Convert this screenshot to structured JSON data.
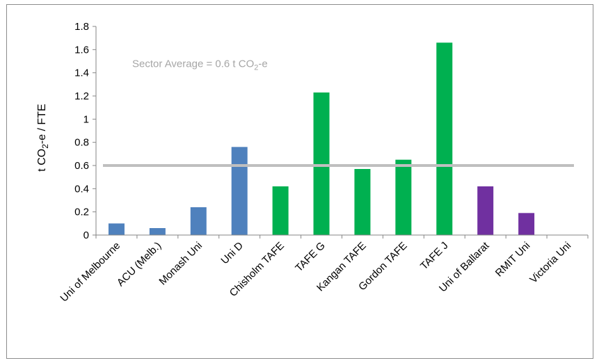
{
  "chart_data": {
    "type": "bar",
    "categories": [
      "Uni of Melbourne",
      "ACU (Melb.)",
      "Monash Uni",
      "Uni D",
      "Chisholm TAFE",
      "TAFE G",
      "Kangan TAFE",
      "Gordon TAFE",
      "TAFE J",
      "Uni of Ballarat",
      "RMIT Uni",
      "Victoria Uni"
    ],
    "values": [
      0.1,
      0.06,
      0.24,
      0.76,
      0.42,
      1.23,
      0.57,
      0.65,
      1.66,
      0.42,
      0.19,
      0
    ],
    "colors": [
      "#4f81bd",
      "#4f81bd",
      "#4f81bd",
      "#4f81bd",
      "#00b050",
      "#00b050",
      "#00b050",
      "#00b050",
      "#00b050",
      "#7030a0",
      "#7030a0",
      "#7030a0"
    ],
    "ylabel": {
      "prefix": "t CO",
      "subscript": "2",
      "suffix": "-e / FTE"
    },
    "ylim": [
      0,
      1.8
    ],
    "yticks": [
      "0",
      "0.2",
      "0.4",
      "0.6",
      "0.8",
      "1",
      "1.2",
      "1.4",
      "1.6",
      "1.8"
    ],
    "grid": false,
    "reference_line": {
      "value": 0.6,
      "color": "#bfbfbf"
    },
    "annotation": {
      "prefix": "Sector Average = 0.6 t CO",
      "subscript": "2",
      "suffix": "-e"
    }
  }
}
